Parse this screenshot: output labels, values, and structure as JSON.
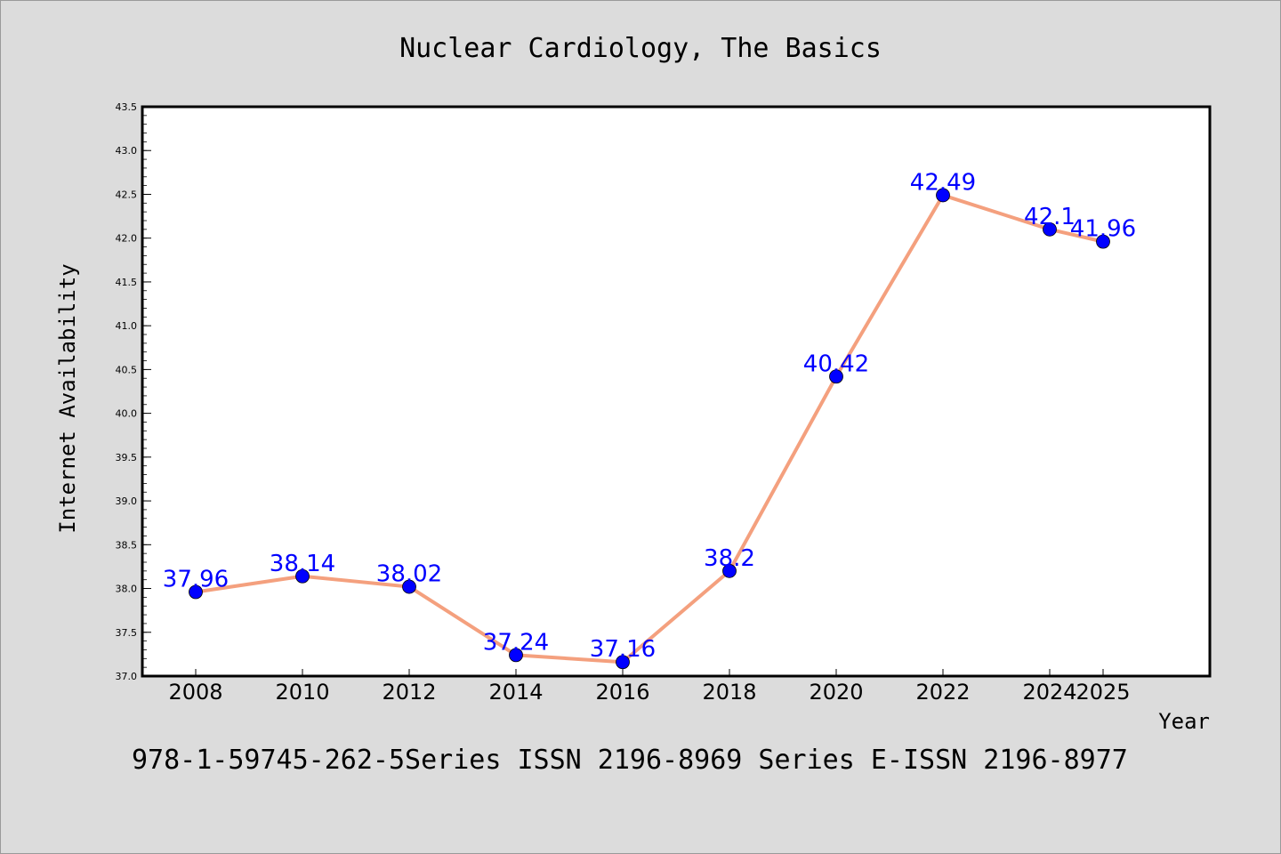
{
  "chart_data": {
    "type": "line",
    "title": "Nuclear Cardiology, The Basics",
    "xlabel": "Year",
    "ylabel": "Internet Availability",
    "footer": "978-1-59745-262-5Series ISSN 2196-8969 Series E-ISSN 2196-8977",
    "x": [
      "2008",
      "2010",
      "2012",
      "2014",
      "2016",
      "2018",
      "2020",
      "2022",
      "2024",
      "2025"
    ],
    "values": [
      37.96,
      38.14,
      38.02,
      37.24,
      37.16,
      38.2,
      40.42,
      42.49,
      42.1,
      41.96
    ],
    "data_labels": [
      "37.96",
      "38.14",
      "38.02",
      "37.24",
      "37.16",
      "38.2",
      "40.42",
      "42.49",
      "42.1",
      "41.96"
    ],
    "ylim": [
      37.0,
      43.5
    ],
    "yticks": [
      "37.0",
      "37.5",
      "38.0",
      "38.5",
      "39.0",
      "39.5",
      "40.0",
      "40.5",
      "41.0",
      "41.5",
      "42.0",
      "42.5",
      "43.0",
      "43.5"
    ],
    "grid": false,
    "legend": "none",
    "colors": {
      "line": "#f4a07e",
      "marker": "#0000ff",
      "data_label": "#0000ff",
      "plot_background": "#ffffff",
      "page_background": "#dcdcdc"
    }
  }
}
